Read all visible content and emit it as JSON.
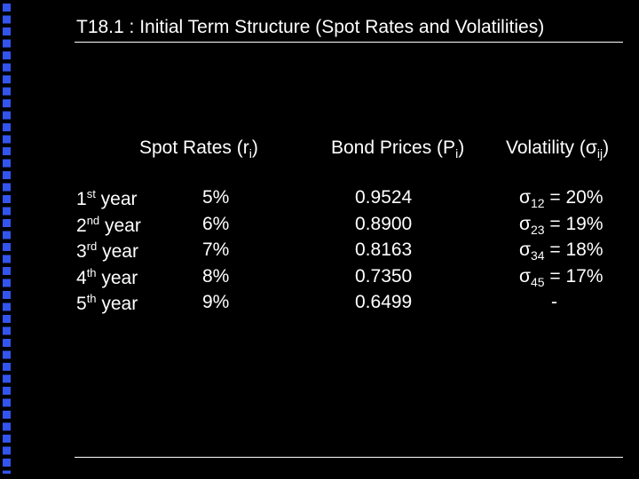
{
  "title": "T18.1 : Initial Term Structure (Spot Rates and Volatilities)",
  "headers": {
    "spot": {
      "text": "Spot Rates (r",
      "sub": "i",
      "end": ")"
    },
    "bond": {
      "text": "Bond Prices (P",
      "sub": "i",
      "end": ")"
    },
    "vol": {
      "text": "Volatility (σ",
      "sub": "ij",
      "end": ")"
    }
  },
  "rows": [
    {
      "year": {
        "num": "1",
        "sup": "st",
        "text": "year"
      },
      "spot": "5%",
      "bond": "0.9524",
      "vol": {
        "sym": "σ",
        "sub": "12",
        "text": "= 20%"
      }
    },
    {
      "year": {
        "num": "2",
        "sup": "nd",
        "text": "year"
      },
      "spot": "6%",
      "bond": "0.8900",
      "vol": {
        "sym": "σ",
        "sub": "23",
        "text": "= 19%"
      }
    },
    {
      "year": {
        "num": "3",
        "sup": "rd",
        "text": "year"
      },
      "spot": "7%",
      "bond": "0.8163",
      "vol": {
        "sym": "σ",
        "sub": "34",
        "text": "= 18%"
      }
    },
    {
      "year": {
        "num": "4",
        "sup": "th",
        "text": "year"
      },
      "spot": "8%",
      "bond": "0.7350",
      "vol": {
        "sym": "σ",
        "sub": "45",
        "text": "= 17%"
      }
    },
    {
      "year": {
        "num": "5",
        "sup": "th",
        "text": "year"
      },
      "spot": "9%",
      "bond": "0.6499",
      "vol": {
        "text": "-"
      }
    }
  ]
}
